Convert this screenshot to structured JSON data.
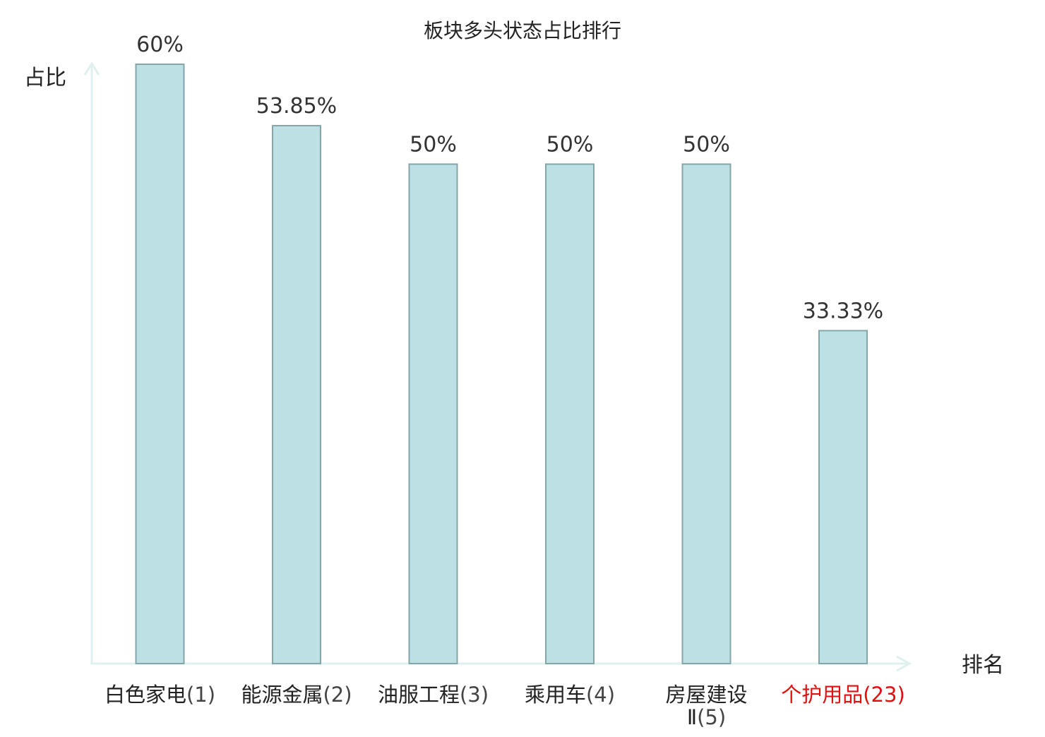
{
  "chart_data": {
    "type": "bar",
    "title": "板块多头状态占比排行",
    "ylabel": "占比",
    "xlabel": "排名",
    "ylim": [
      0,
      60
    ],
    "grid": false,
    "categories": [
      {
        "name": "白色家电",
        "rank": "(1)",
        "highlight": false
      },
      {
        "name": "能源金属",
        "rank": "(2)",
        "highlight": false
      },
      {
        "name": "油服工程",
        "rank": "(3)",
        "highlight": false
      },
      {
        "name": "乘用车",
        "rank": "(4)",
        "highlight": false
      },
      {
        "name": "房屋建设",
        "name2": "Ⅱ",
        "rank": "(5)",
        "highlight": false
      },
      {
        "name": "个护用品",
        "rank": "(23)",
        "highlight": true
      }
    ],
    "values": [
      60,
      53.85,
      50,
      50,
      50,
      33.33
    ],
    "value_labels": [
      "60%",
      "53.85%",
      "50%",
      "50%",
      "50%",
      "33.33%"
    ]
  },
  "colors": {
    "bar_fill": "#bce0e3",
    "bar_stroke": "#86a5a8",
    "axis": "#dff1ee",
    "text": "#333333",
    "highlight": "#e01010"
  }
}
